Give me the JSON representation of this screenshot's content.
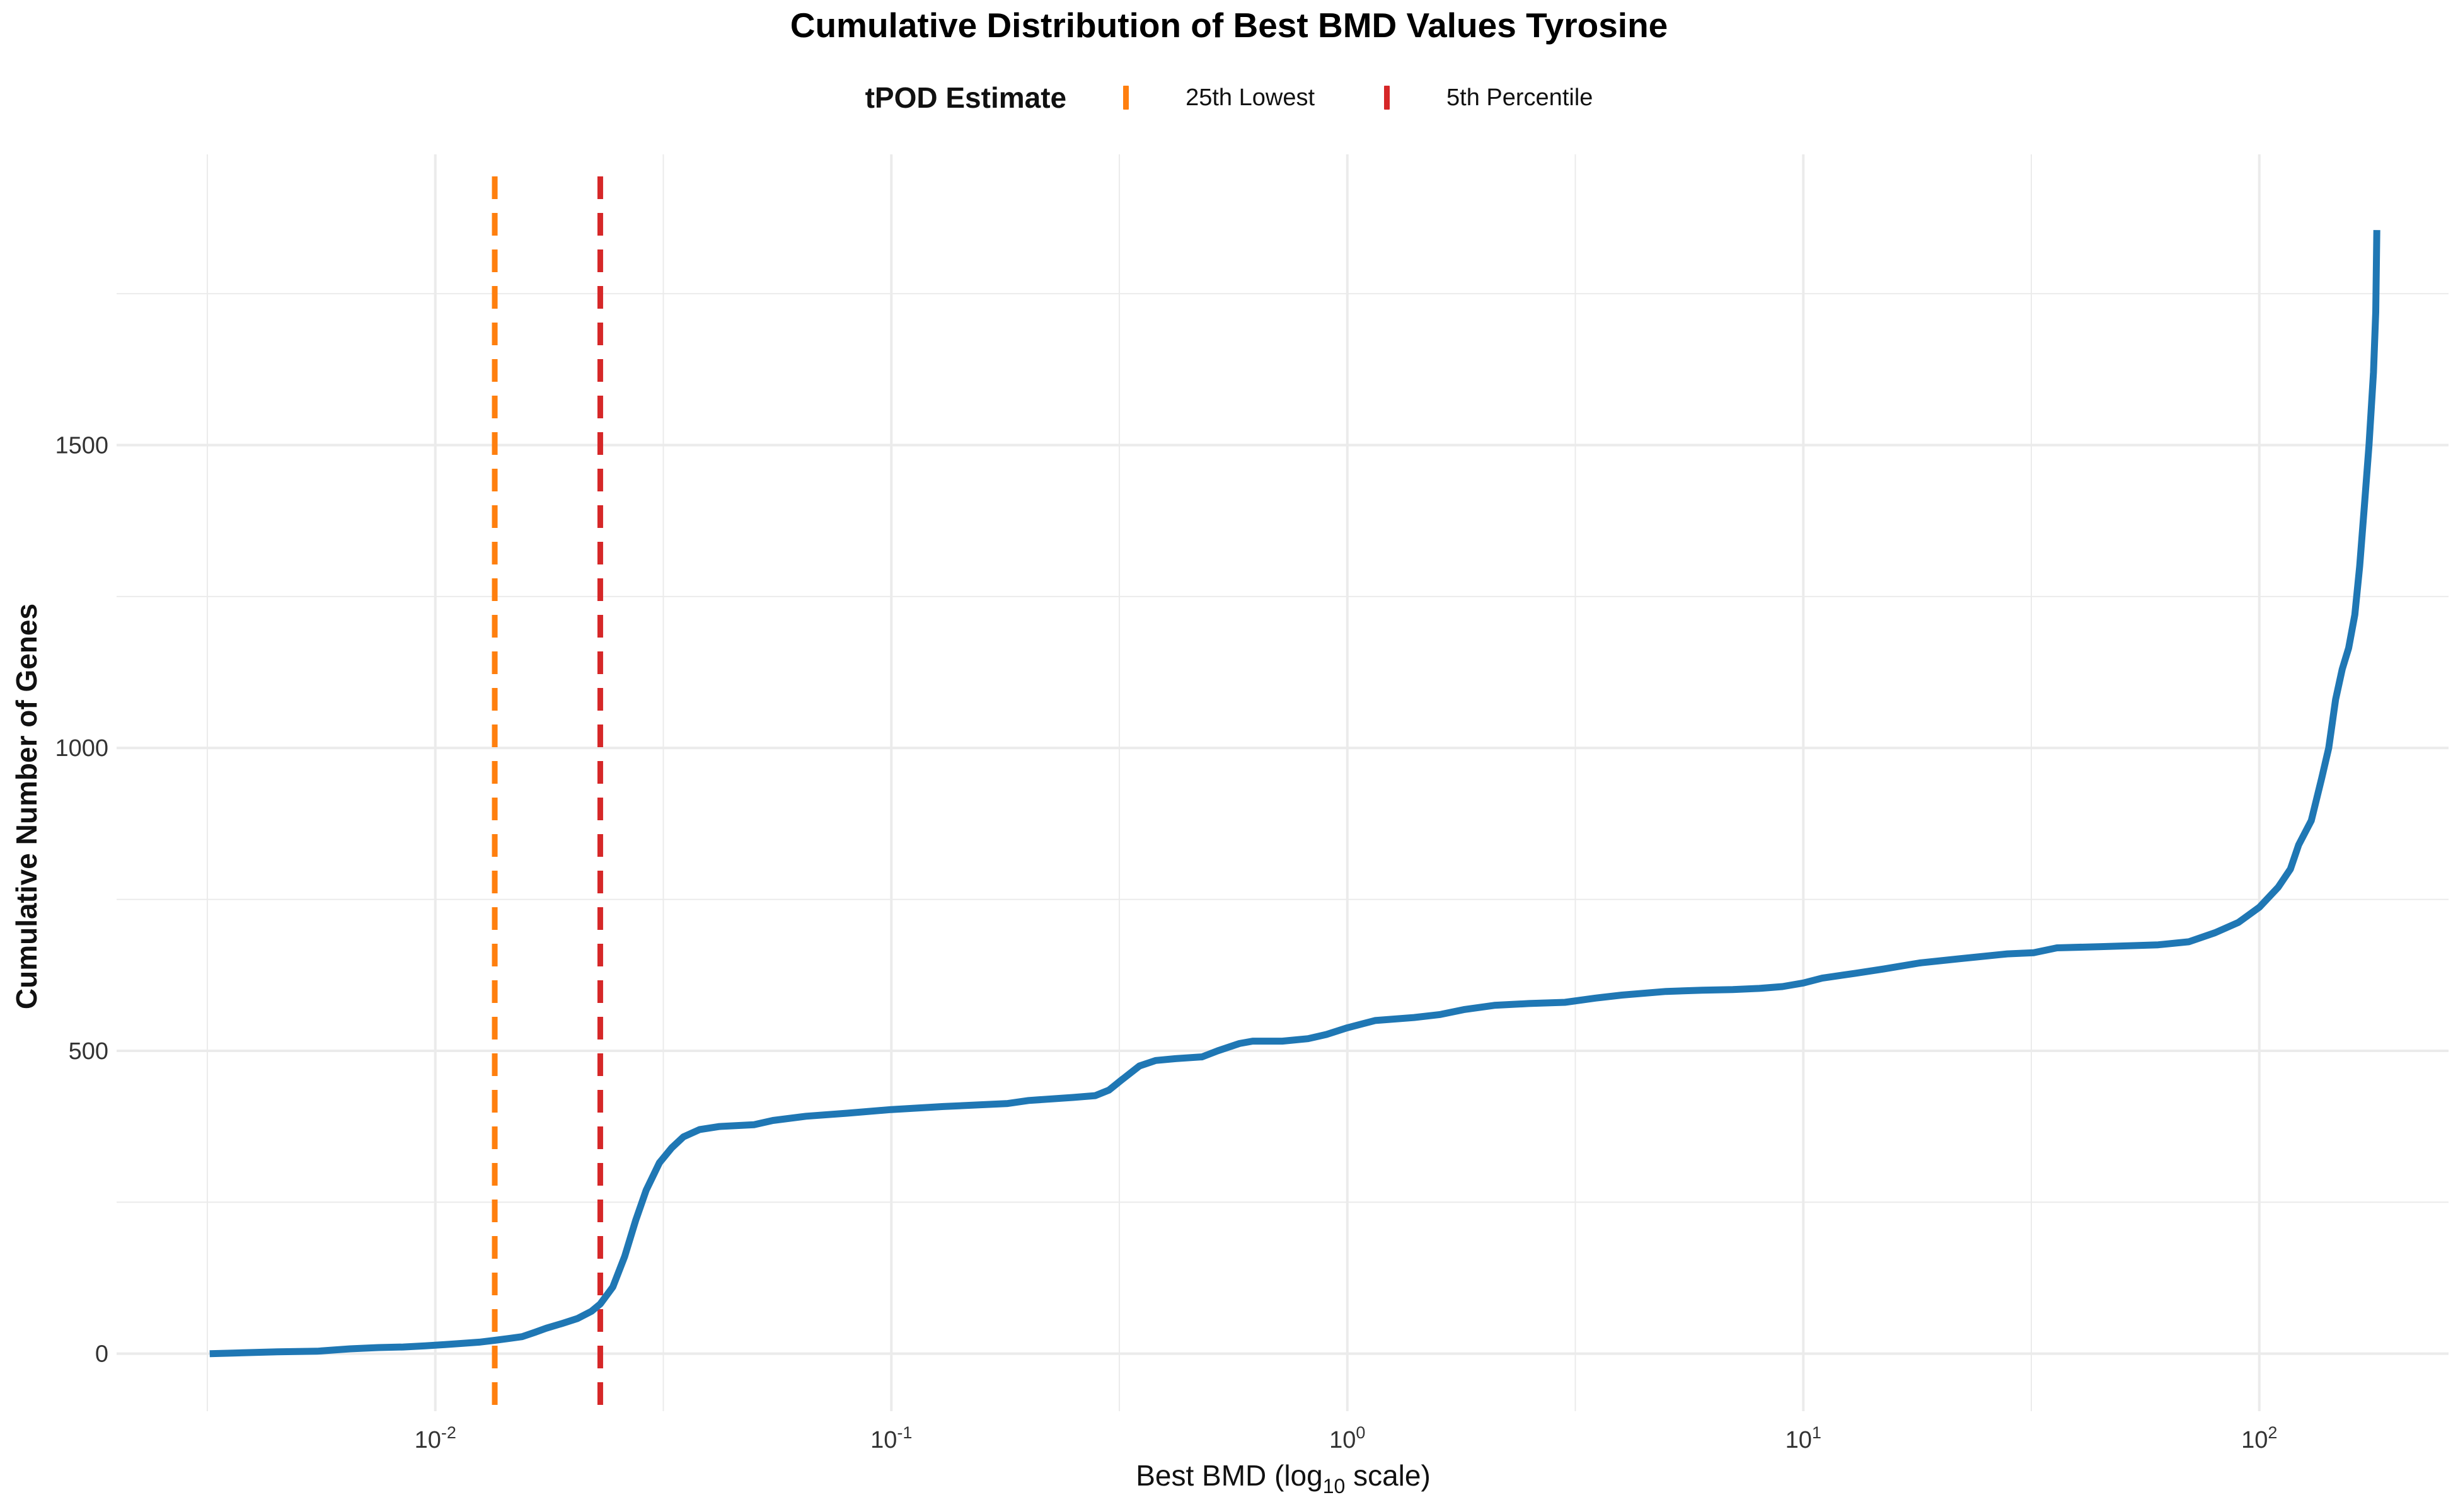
{
  "chart_data": {
    "type": "line",
    "title": "Cumulative Distribution of Best BMD Values Tyrosine",
    "xlabel": "Best BMD (log10 scale)",
    "xlabel_main": "Best BMD (log",
    "xlabel_sub": "10",
    "xlabel_tail": " scale)",
    "ylabel": "Cumulative Number of Genes",
    "x_scale": "log10",
    "xlim": [
      0.002,
      260
    ],
    "ylim": [
      -95,
      1980
    ],
    "x_ticks": [
      {
        "value": 0.01,
        "base": "10",
        "exp": "-2"
      },
      {
        "value": 0.1,
        "base": "10",
        "exp": "-1"
      },
      {
        "value": 1,
        "base": "10",
        "exp": "0"
      },
      {
        "value": 10,
        "base": "10",
        "exp": "1"
      },
      {
        "value": 100,
        "base": "10",
        "exp": "2"
      }
    ],
    "y_ticks": [
      0,
      500,
      1000,
      1500
    ],
    "grid": true,
    "legend": {
      "title": "tPOD Estimate",
      "placement": "top",
      "items": [
        {
          "label": "25th Lowest",
          "color": "#ff7f0e"
        },
        {
          "label": "5th Percentile",
          "color": "#d62728"
        }
      ]
    },
    "reference_lines": [
      {
        "name": "25th Lowest",
        "x": 0.0135,
        "color": "#ff7f0e",
        "style": "dashed"
      },
      {
        "name": "5th Percentile",
        "x": 0.023,
        "color": "#d62728",
        "style": "dashed"
      }
    ],
    "series": [
      {
        "color": "#1f77b4",
        "points": [
          [
            0.0032,
            0
          ],
          [
            0.0036,
            1
          ],
          [
            0.0045,
            3
          ],
          [
            0.0055,
            4
          ],
          [
            0.0065,
            8
          ],
          [
            0.0075,
            10
          ],
          [
            0.0085,
            11
          ],
          [
            0.0095,
            13
          ],
          [
            0.0105,
            15
          ],
          [
            0.0115,
            17
          ],
          [
            0.0125,
            19
          ],
          [
            0.0135,
            22
          ],
          [
            0.0145,
            25
          ],
          [
            0.0155,
            28
          ],
          [
            0.0165,
            35
          ],
          [
            0.0175,
            42
          ],
          [
            0.019,
            50
          ],
          [
            0.0205,
            58
          ],
          [
            0.022,
            70
          ],
          [
            0.023,
            82
          ],
          [
            0.0245,
            110
          ],
          [
            0.026,
            160
          ],
          [
            0.0275,
            220
          ],
          [
            0.029,
            270
          ],
          [
            0.031,
            315
          ],
          [
            0.033,
            340
          ],
          [
            0.035,
            358
          ],
          [
            0.038,
            370
          ],
          [
            0.042,
            375
          ],
          [
            0.05,
            378
          ],
          [
            0.055,
            385
          ],
          [
            0.065,
            392
          ],
          [
            0.08,
            397
          ],
          [
            0.1,
            403
          ],
          [
            0.13,
            408
          ],
          [
            0.18,
            413
          ],
          [
            0.2,
            418
          ],
          [
            0.25,
            423
          ],
          [
            0.28,
            426
          ],
          [
            0.3,
            435
          ],
          [
            0.32,
            452
          ],
          [
            0.35,
            475
          ],
          [
            0.38,
            484
          ],
          [
            0.42,
            487
          ],
          [
            0.48,
            490
          ],
          [
            0.52,
            500
          ],
          [
            0.58,
            512
          ],
          [
            0.62,
            516
          ],
          [
            0.72,
            516
          ],
          [
            0.82,
            520
          ],
          [
            0.9,
            527
          ],
          [
            1.0,
            538
          ],
          [
            1.15,
            550
          ],
          [
            1.4,
            555
          ],
          [
            1.6,
            560
          ],
          [
            1.8,
            568
          ],
          [
            2.1,
            575
          ],
          [
            2.5,
            578
          ],
          [
            3.0,
            580
          ],
          [
            3.5,
            587
          ],
          [
            4.0,
            592
          ],
          [
            5.0,
            598
          ],
          [
            6.0,
            600
          ],
          [
            7.0,
            601
          ],
          [
            8.0,
            603
          ],
          [
            9.0,
            606
          ],
          [
            10.0,
            612
          ],
          [
            11.0,
            620
          ],
          [
            13.0,
            628
          ],
          [
            15.0,
            635
          ],
          [
            18.0,
            645
          ],
          [
            22.0,
            652
          ],
          [
            28.0,
            660
          ],
          [
            32.0,
            662
          ],
          [
            36.0,
            670
          ],
          [
            45.0,
            672
          ],
          [
            60.0,
            675
          ],
          [
            70.0,
            680
          ],
          [
            80.0,
            695
          ],
          [
            90.0,
            712
          ],
          [
            100.0,
            737
          ],
          [
            110.0,
            770
          ],
          [
            117.0,
            800
          ],
          [
            122.0,
            840
          ],
          [
            130.0,
            880
          ],
          [
            137.0,
            950
          ],
          [
            142.0,
            1000
          ],
          [
            147.0,
            1080
          ],
          [
            152.0,
            1130
          ],
          [
            157.0,
            1165
          ],
          [
            162.0,
            1220
          ],
          [
            166.0,
            1300
          ],
          [
            170.0,
            1400
          ],
          [
            174.0,
            1500
          ],
          [
            178.0,
            1620
          ],
          [
            180.0,
            1720
          ],
          [
            181.0,
            1855
          ]
        ]
      }
    ]
  }
}
